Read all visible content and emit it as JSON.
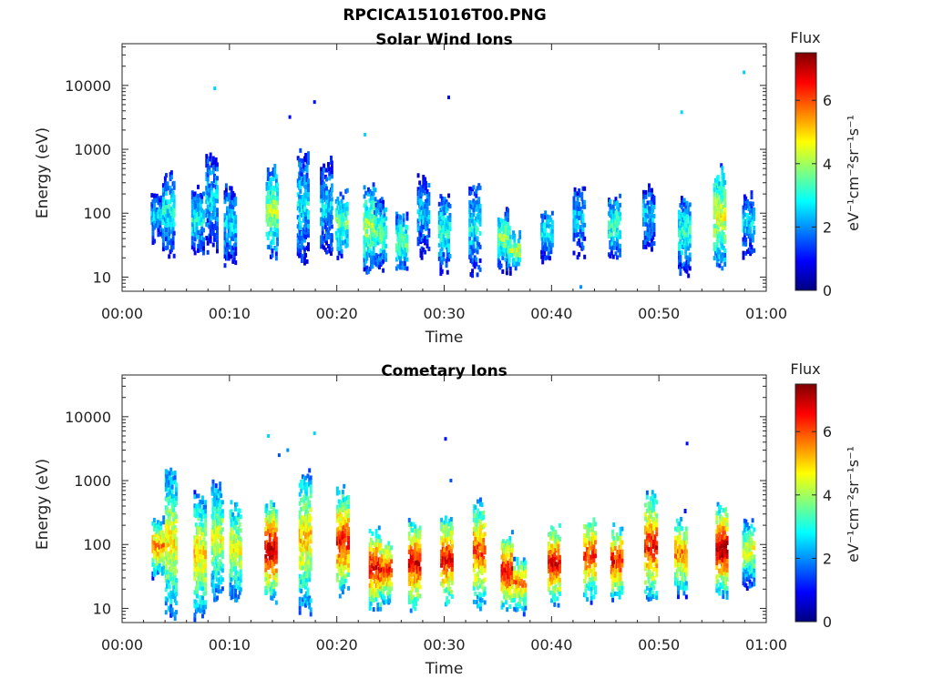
{
  "figure_title": "RPCICA151016T00.PNG",
  "colormap": [
    "#00007f",
    "#0000ff",
    "#007fff",
    "#00ffff",
    "#7fff7f",
    "#ffff00",
    "#ff7f00",
    "#ff0000",
    "#7f0000"
  ],
  "chart_data": [
    {
      "type": "heatmap",
      "title": "Solar Wind Ions",
      "xlabel": "Time",
      "ylabel": "Energy (eV)",
      "x_ticks": [
        "00:00",
        "00:10",
        "00:20",
        "00:30",
        "00:40",
        "00:50",
        "01:00"
      ],
      "xlim_minutes": [
        0,
        60
      ],
      "y_scale": "log",
      "y_ticks": [
        10,
        100,
        1000,
        10000
      ],
      "y_tick_labels": [
        "10",
        "100",
        "1000",
        "10000"
      ],
      "ylim": [
        6,
        45000
      ],
      "colorbar": {
        "title": "Flux",
        "unit": "eV⁻¹cm⁻²sr⁻¹s⁻¹",
        "range": [
          0,
          7.5
        ],
        "ticks": [
          0,
          2,
          4,
          6
        ]
      },
      "bursts": [
        {
          "t": 3.2,
          "e_lo": 40,
          "e_hi": 200,
          "flux": 2.2
        },
        {
          "t": 4.3,
          "e_lo": 25,
          "e_hi": 450,
          "flux": 2.5
        },
        {
          "t": 7.0,
          "e_lo": 25,
          "e_hi": 250,
          "flux": 2.6
        },
        {
          "t": 8.3,
          "e_lo": 30,
          "e_hi": 900,
          "flux": 2.2
        },
        {
          "t": 10.0,
          "e_lo": 18,
          "e_hi": 280,
          "flux": 2.3
        },
        {
          "t": 13.9,
          "e_lo": 22,
          "e_hi": 550,
          "flux": 3.6
        },
        {
          "t": 16.8,
          "e_lo": 20,
          "e_hi": 1000,
          "flux": 2.4
        },
        {
          "t": 19.0,
          "e_lo": 25,
          "e_hi": 700,
          "flux": 2.2
        },
        {
          "t": 20.4,
          "e_lo": 22,
          "e_hi": 250,
          "flux": 3.2
        },
        {
          "t": 23.0,
          "e_lo": 13,
          "e_hi": 300,
          "flux": 3.6
        },
        {
          "t": 24.0,
          "e_lo": 15,
          "e_hi": 150,
          "flux": 3.2
        },
        {
          "t": 26.0,
          "e_lo": 13,
          "e_hi": 100,
          "flux": 3.3
        },
        {
          "t": 28.0,
          "e_lo": 25,
          "e_hi": 400,
          "flux": 2.2
        },
        {
          "t": 30.0,
          "e_lo": 13,
          "e_hi": 200,
          "flux": 2.8
        },
        {
          "t": 32.8,
          "e_lo": 13,
          "e_hi": 300,
          "flux": 2.5
        },
        {
          "t": 35.5,
          "e_lo": 14,
          "e_hi": 120,
          "flux": 3.4
        },
        {
          "t": 36.5,
          "e_lo": 14,
          "e_hi": 50,
          "flux": 3.8
        },
        {
          "t": 39.5,
          "e_lo": 20,
          "e_hi": 120,
          "flux": 2.6
        },
        {
          "t": 42.5,
          "e_lo": 25,
          "e_hi": 250,
          "flux": 2.2
        },
        {
          "t": 45.8,
          "e_lo": 22,
          "e_hi": 200,
          "flux": 3.0
        },
        {
          "t": 49.0,
          "e_lo": 30,
          "e_hi": 250,
          "flux": 2.3
        },
        {
          "t": 52.3,
          "e_lo": 13,
          "e_hi": 200,
          "flux": 2.8
        },
        {
          "t": 55.6,
          "e_lo": 14,
          "e_hi": 600,
          "flux": 4.0
        },
        {
          "t": 58.3,
          "e_lo": 25,
          "e_hi": 200,
          "flux": 2.3
        }
      ],
      "isolated_points": [
        {
          "t": 8.5,
          "e": 9000,
          "flux": 2.5
        },
        {
          "t": 15.5,
          "e": 3200,
          "flux": 1.0
        },
        {
          "t": 17.8,
          "e": 5500,
          "flux": 1.0
        },
        {
          "t": 30.3,
          "e": 6500,
          "flux": 1.0
        },
        {
          "t": 57.8,
          "e": 16000,
          "flux": 2.5
        },
        {
          "t": 52.0,
          "e": 3800,
          "flux": 2.5
        },
        {
          "t": 22.5,
          "e": 1700,
          "flux": 2.5
        },
        {
          "t": 42.6,
          "e": 7,
          "flux": 2.0
        }
      ]
    },
    {
      "type": "heatmap",
      "title": "Cometary Ions",
      "xlabel": "Time",
      "ylabel": "Energy (eV)",
      "x_ticks": [
        "00:00",
        "00:10",
        "00:20",
        "00:30",
        "00:40",
        "00:50",
        "01:00"
      ],
      "xlim_minutes": [
        0,
        60
      ],
      "y_scale": "log",
      "y_ticks": [
        10,
        100,
        1000,
        10000
      ],
      "y_tick_labels": [
        "10",
        "100",
        "1000",
        "10000"
      ],
      "ylim": [
        6,
        45000
      ],
      "colorbar": {
        "title": "Flux",
        "unit": "eV⁻¹cm⁻²sr⁻¹s⁻¹",
        "range": [
          0,
          7.5
        ],
        "ticks": [
          0,
          2,
          4,
          6
        ]
      },
      "bursts": [
        {
          "t": 3.3,
          "e_lo": 35,
          "e_hi": 250,
          "flux": 5.0
        },
        {
          "t": 4.5,
          "e_lo": 8,
          "e_hi": 1600,
          "flux": 4.2
        },
        {
          "t": 7.2,
          "e_lo": 8,
          "e_hi": 600,
          "flux": 4.5
        },
        {
          "t": 8.8,
          "e_lo": 15,
          "e_hi": 1000,
          "flux": 4.0
        },
        {
          "t": 10.5,
          "e_lo": 15,
          "e_hi": 500,
          "flux": 4.2
        },
        {
          "t": 13.8,
          "e_lo": 15,
          "e_hi": 450,
          "flux": 6.3
        },
        {
          "t": 17.0,
          "e_lo": 10,
          "e_hi": 1500,
          "flux": 4.5
        },
        {
          "t": 20.5,
          "e_lo": 18,
          "e_hi": 700,
          "flux": 5.8
        },
        {
          "t": 23.5,
          "e_lo": 10,
          "e_hi": 180,
          "flux": 6.0
        },
        {
          "t": 24.5,
          "e_lo": 13,
          "e_hi": 120,
          "flux": 5.8
        },
        {
          "t": 27.2,
          "e_lo": 10,
          "e_hi": 250,
          "flux": 6.0
        },
        {
          "t": 30.2,
          "e_lo": 12,
          "e_hi": 300,
          "flux": 5.8
        },
        {
          "t": 33.2,
          "e_lo": 12,
          "e_hi": 500,
          "flux": 5.5
        },
        {
          "t": 35.8,
          "e_lo": 10,
          "e_hi": 150,
          "flux": 6.0
        },
        {
          "t": 37.0,
          "e_lo": 10,
          "e_hi": 60,
          "flux": 5.2
        },
        {
          "t": 40.2,
          "e_lo": 12,
          "e_hi": 200,
          "flux": 6.0
        },
        {
          "t": 43.5,
          "e_lo": 15,
          "e_hi": 300,
          "flux": 5.5
        },
        {
          "t": 46.0,
          "e_lo": 15,
          "e_hi": 200,
          "flux": 5.8
        },
        {
          "t": 49.2,
          "e_lo": 15,
          "e_hi": 600,
          "flux": 5.8
        },
        {
          "t": 52.0,
          "e_lo": 18,
          "e_hi": 300,
          "flux": 5.0
        },
        {
          "t": 55.8,
          "e_lo": 18,
          "e_hi": 400,
          "flux": 6.5
        },
        {
          "t": 58.3,
          "e_lo": 25,
          "e_hi": 250,
          "flux": 4.0
        }
      ],
      "isolated_points": [
        {
          "t": 13.5,
          "e": 5000,
          "flux": 2.5
        },
        {
          "t": 15.3,
          "e": 3000,
          "flux": 2.0
        },
        {
          "t": 17.8,
          "e": 5500,
          "flux": 2.5
        },
        {
          "t": 30.5,
          "e": 1000,
          "flux": 1.5
        },
        {
          "t": 30.0,
          "e": 4500,
          "flux": 1.0
        },
        {
          "t": 52.5,
          "e": 3800,
          "flux": 1.0
        },
        {
          "t": 14.5,
          "e": 2500,
          "flux": 1.5
        }
      ]
    }
  ]
}
